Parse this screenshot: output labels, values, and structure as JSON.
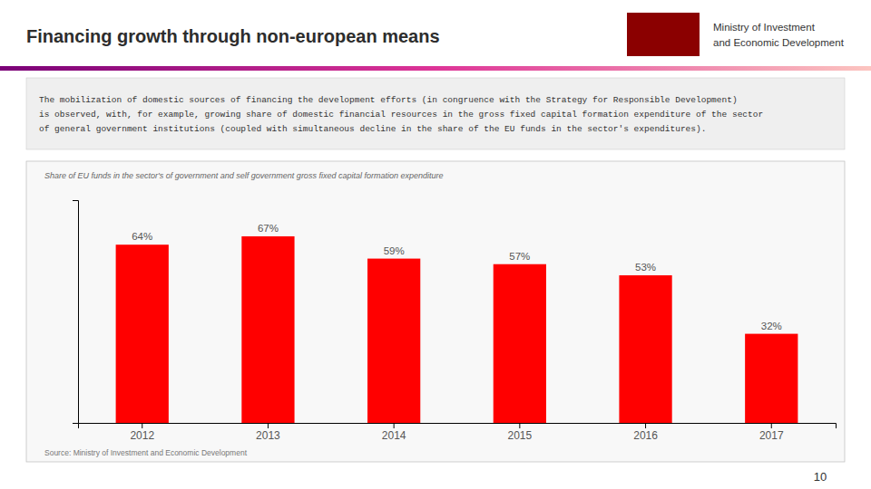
{
  "chart_data": {
    "type": "bar",
    "title": "Financing growth through non-european means",
    "subtitle": "Share of EU funds in the sector's of government and self government gross fixed capital formation expenditure",
    "description": "The mobilization of domestic sources of financing the development efforts (in congruence with the Strategy for Responsible Development)\nis observed, with, for example, growing share of domestic financial resources in the gross fixed capital formation expenditure of the sector\nof general government institutions (coupled with simultaneous decline in the share of the EU funds in the sector's expenditures).",
    "source": "Source: Ministry of Investment and Economic Development",
    "annotations": [
      "Ministry of Investment",
      "and Economic Development",
      "10"
    ],
    "categories": [
      "2012",
      "2013",
      "2014",
      "2015",
      "2016",
      "2017"
    ],
    "values": [
      64,
      67,
      59,
      57,
      53,
      32
    ],
    "value_labels": [
      "64%",
      "67%",
      "59%",
      "57%",
      "53%",
      "32%"
    ],
    "color": "#ff0000",
    "ylim": [
      0,
      80
    ],
    "data_labels": true,
    "tick_labels": "x",
    "grid": false
  }
}
